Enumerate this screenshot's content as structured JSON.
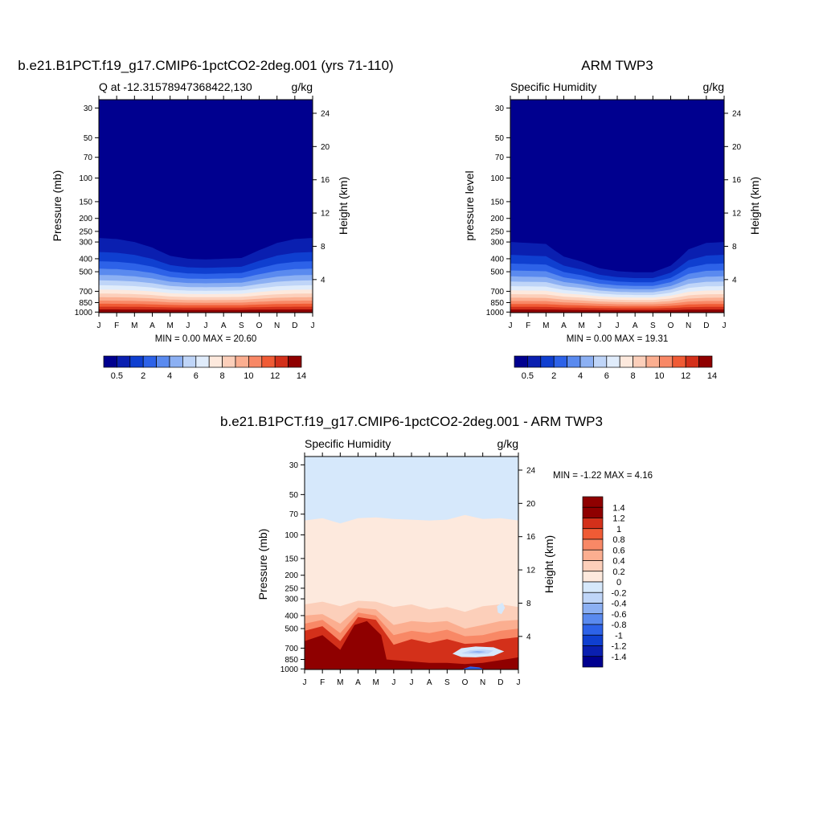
{
  "chart_data": [
    {
      "type": "heatmap",
      "title": "b.e21.B1PCT.f19_g17.CMIP6-1pctCO2-2deg.001 (yrs 71-110)",
      "subtitle_left": "Q at -12.31578947368422,130",
      "subtitle_right": "g/kg",
      "ylabel": "Pressure (mb)",
      "ylabel_right": "Height (km)",
      "x_ticks": [
        "J",
        "F",
        "M",
        "A",
        "M",
        "J",
        "J",
        "A",
        "S",
        "O",
        "N",
        "D",
        "J"
      ],
      "y_ticks": [
        "30",
        "50",
        "70",
        "100",
        "150",
        "200",
        "250",
        "300",
        "400",
        "500",
        "700",
        "850",
        "1000"
      ],
      "y_right_ticks": [
        "24",
        "20",
        "16",
        "12",
        "8",
        "4"
      ],
      "min_max_text": "MIN =   0.00 MAX =  20.60",
      "colorbar_labels": [
        "0.5",
        "2",
        "4",
        "6",
        "8",
        "10",
        "12",
        "14"
      ],
      "colorbar_orientation": "horizontal",
      "moist_top_pressure_mb": [
        280,
        285,
        300,
        330,
        380,
        400,
        405,
        400,
        395,
        345,
        305,
        285,
        280
      ],
      "max": 20.6,
      "min": 0
    },
    {
      "type": "heatmap",
      "title": "ARM TWP3",
      "subtitle_left": "Specific Humidity",
      "subtitle_right": "g/kg",
      "ylabel": "pressure level",
      "ylabel_right": "Height (km)",
      "x_ticks": [
        "J",
        "F",
        "M",
        "A",
        "M",
        "J",
        "J",
        "A",
        "S",
        "O",
        "N",
        "D",
        "J"
      ],
      "y_ticks": [
        "30",
        "50",
        "70",
        "100",
        "150",
        "200",
        "250",
        "300",
        "400",
        "500",
        "700",
        "850",
        "1000"
      ],
      "y_right_ticks": [
        "24",
        "20",
        "16",
        "12",
        "8",
        "4"
      ],
      "min_max_text": "MIN =   0.00 MAX =  19.31",
      "colorbar_labels": [
        "0.5",
        "2",
        "4",
        "6",
        "8",
        "10",
        "12",
        "14"
      ],
      "colorbar_orientation": "horizontal",
      "moist_top_pressure_mb": [
        300,
        305,
        310,
        385,
        420,
        470,
        495,
        505,
        505,
        450,
        340,
        305,
        300
      ],
      "max": 19.31,
      "min": 0
    },
    {
      "type": "heatmap",
      "title": "b.e21.B1PCT.f19_g17.CMIP6-1pctCO2-2deg.001 - ARM TWP3",
      "subtitle_left": "Specific Humidity",
      "subtitle_right": "g/kg",
      "ylabel": "Pressure (mb)",
      "ylabel_right": "Height (km)",
      "x_ticks": [
        "J",
        "F",
        "M",
        "A",
        "M",
        "J",
        "J",
        "A",
        "S",
        "O",
        "N",
        "D",
        "J"
      ],
      "y_ticks": [
        "30",
        "50",
        "70",
        "100",
        "150",
        "200",
        "250",
        "300",
        "400",
        "500",
        "700",
        "850",
        "1000"
      ],
      "y_right_ticks": [
        "24",
        "20",
        "16",
        "12",
        "8",
        "4"
      ],
      "min_max_text": "MIN =  -1.22 MAX =   4.16",
      "colorbar_labels": [
        "1.4",
        "1.2",
        "1",
        "0.8",
        "0.6",
        "0.4",
        "0.2",
        "0",
        "-0.2",
        "-0.4",
        "-0.6",
        "-0.8",
        "-1",
        "-1.2",
        "-1.4"
      ],
      "colorbar_orientation": "vertical",
      "min": -1.22,
      "max": 4.16
    }
  ],
  "colors": {
    "levels_15": [
      "#00008f",
      "#0a1fb0",
      "#0f3fd0",
      "#2d62e8",
      "#5a8aef",
      "#8cb0f3",
      "#bfd5f8",
      "#e0ecfb",
      "#fde9dd",
      "#fccfba",
      "#fbae90",
      "#f88866",
      "#f05b35",
      "#d3301a",
      "#8f0000"
    ],
    "diff_levels": [
      "#00008f",
      "#0a1fb0",
      "#0f3fd0",
      "#2d62e8",
      "#5a8aef",
      "#8cb0f3",
      "#bfd5f8",
      "#d6e8fb",
      "#fde9dd",
      "#fccfba",
      "#fbae90",
      "#f88866",
      "#f05b35",
      "#d3301a",
      "#8f0000",
      "#8f0000"
    ]
  }
}
